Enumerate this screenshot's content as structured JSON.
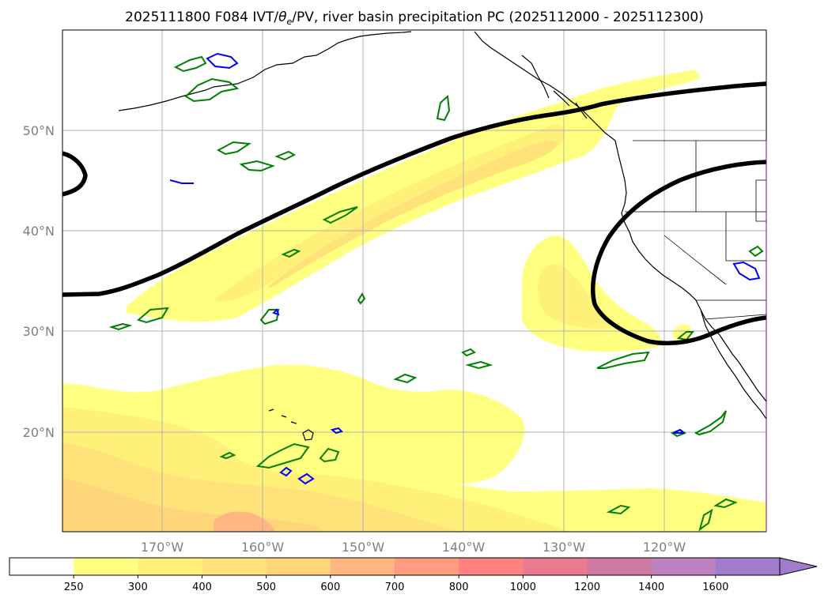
{
  "title": {
    "prefix": "2025111800 F084 IVT/",
    "theta": "θ",
    "theta_sub": "e",
    "suffix": "/PV, river basin precipitation PC (2025112000 - 2025112300)"
  },
  "axes": {
    "lat_labels": [
      "50°N",
      "40°N",
      "30°N",
      "20°N"
    ],
    "lon_labels": [
      "170°W",
      "160°W",
      "150°W",
      "140°W",
      "130°W",
      "120°W"
    ]
  },
  "colorbar": {
    "extend": "max",
    "tick_labels": [
      "250",
      "300",
      "400",
      "500",
      "600",
      "700",
      "800",
      "1000",
      "1200",
      "1400",
      "1600"
    ],
    "colors": [
      "#ffffff",
      "#ffff80",
      "#fff07a",
      "#ffe37a",
      "#ffd57a",
      "#ffb680",
      "#ff9c80",
      "#ff8080",
      "#e97a8f",
      "#cf7aa3",
      "#bf80c0",
      "#a07ccc"
    ]
  },
  "colors": {
    "theta_contour": "#000000",
    "pv_green_contour": "#008000",
    "pv_blue_contour": "#0000ff",
    "coastline": "#000000",
    "gridline": "#b0b0b0"
  }
}
